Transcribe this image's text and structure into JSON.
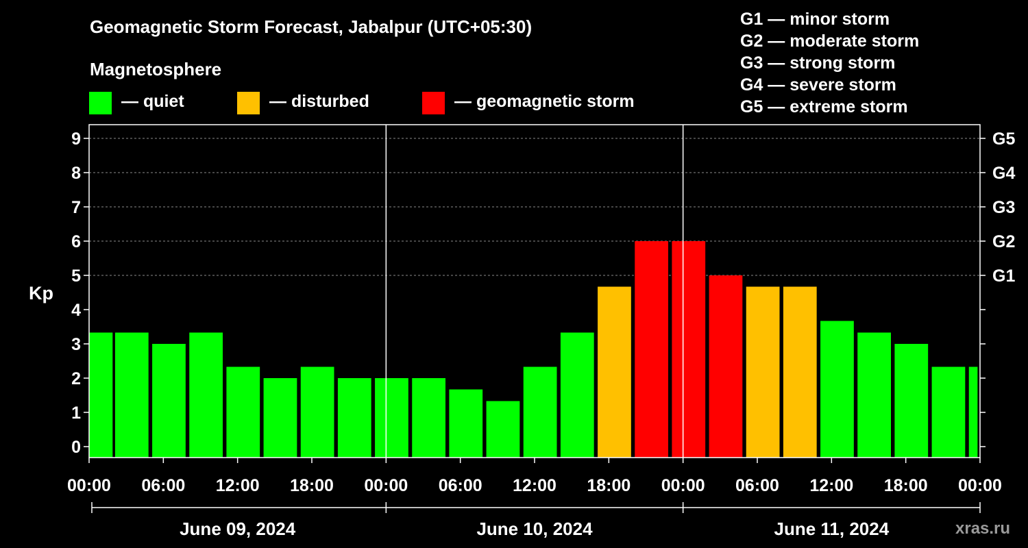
{
  "header": {
    "title": "Geomagnetic Storm Forecast, Jabalpur (UTC+05:30)",
    "subtitle": "Magnetosphere",
    "watermark": "xras.ru"
  },
  "legend": {
    "items": [
      {
        "label": "— quiet",
        "color": "#00ff00"
      },
      {
        "label": "— disturbed",
        "color": "#ffc000"
      },
      {
        "label": "— geomagnetic storm",
        "color": "#ff0000"
      }
    ],
    "storm_levels": [
      "G1 — minor storm",
      "G2 — moderate storm",
      "G3 — strong storm",
      "G4 — severe storm",
      "G5 — extreme storm"
    ]
  },
  "colors": {
    "quiet": "#00ff00",
    "disturbed": "#ffc000",
    "storm": "#ff0000"
  },
  "chart_data": {
    "type": "bar",
    "title": "Geomagnetic Storm Forecast, Jabalpur (UTC+05:30)",
    "ylabel": "Kp",
    "ylim": [
      0,
      9
    ],
    "yticks": [
      "0",
      "1",
      "2",
      "3",
      "4",
      "5",
      "6",
      "7",
      "8",
      "9"
    ],
    "right_axis": [
      {
        "kp": 5,
        "label": "G1"
      },
      {
        "kp": 6,
        "label": "G2"
      },
      {
        "kp": 7,
        "label": "G3"
      },
      {
        "kp": 8,
        "label": "G4"
      },
      {
        "kp": 9,
        "label": "G5"
      }
    ],
    "x_range_hours": [
      0,
      72
    ],
    "xticks": [
      "00:00",
      "06:00",
      "12:00",
      "18:00",
      "00:00",
      "06:00",
      "12:00",
      "18:00",
      "00:00",
      "06:00",
      "12:00",
      "18:00",
      "00:00"
    ],
    "xtick_hours": [
      0,
      6,
      12,
      18,
      24,
      30,
      36,
      42,
      48,
      54,
      60,
      66,
      72
    ],
    "days": [
      "June 09, 2024",
      "June 10, 2024",
      "June 11, 2024"
    ],
    "day_boundaries_hours": [
      24,
      48
    ],
    "bars": [
      {
        "start": 0,
        "end": 1.9,
        "kp": 3.33,
        "level": "quiet"
      },
      {
        "start": 2.1,
        "end": 4.8,
        "kp": 3.33,
        "level": "quiet"
      },
      {
        "start": 5.1,
        "end": 7.8,
        "kp": 3.0,
        "level": "quiet"
      },
      {
        "start": 8.1,
        "end": 10.8,
        "kp": 3.33,
        "level": "quiet"
      },
      {
        "start": 11.1,
        "end": 13.8,
        "kp": 2.33,
        "level": "quiet"
      },
      {
        "start": 14.1,
        "end": 16.8,
        "kp": 2.0,
        "level": "quiet"
      },
      {
        "start": 17.1,
        "end": 19.8,
        "kp": 2.33,
        "level": "quiet"
      },
      {
        "start": 20.1,
        "end": 22.8,
        "kp": 2.0,
        "level": "quiet"
      },
      {
        "start": 23.1,
        "end": 25.8,
        "kp": 2.0,
        "level": "quiet"
      },
      {
        "start": 26.1,
        "end": 28.8,
        "kp": 2.0,
        "level": "quiet"
      },
      {
        "start": 29.1,
        "end": 31.8,
        "kp": 1.67,
        "level": "quiet"
      },
      {
        "start": 32.1,
        "end": 34.8,
        "kp": 1.33,
        "level": "quiet"
      },
      {
        "start": 35.1,
        "end": 37.8,
        "kp": 2.33,
        "level": "quiet"
      },
      {
        "start": 38.1,
        "end": 40.8,
        "kp": 3.33,
        "level": "quiet"
      },
      {
        "start": 41.1,
        "end": 43.8,
        "kp": 4.67,
        "level": "disturbed"
      },
      {
        "start": 44.1,
        "end": 46.8,
        "kp": 6.0,
        "level": "storm"
      },
      {
        "start": 47.1,
        "end": 49.8,
        "kp": 6.0,
        "level": "storm"
      },
      {
        "start": 50.1,
        "end": 52.8,
        "kp": 5.0,
        "level": "storm"
      },
      {
        "start": 53.1,
        "end": 55.8,
        "kp": 4.67,
        "level": "disturbed"
      },
      {
        "start": 56.1,
        "end": 58.8,
        "kp": 4.67,
        "level": "disturbed"
      },
      {
        "start": 59.1,
        "end": 61.8,
        "kp": 3.67,
        "level": "quiet"
      },
      {
        "start": 62.1,
        "end": 64.8,
        "kp": 3.33,
        "level": "quiet"
      },
      {
        "start": 65.1,
        "end": 67.8,
        "kp": 3.0,
        "level": "quiet"
      },
      {
        "start": 68.1,
        "end": 70.8,
        "kp": 2.33,
        "level": "quiet"
      },
      {
        "start": 71.1,
        "end": 71.8,
        "kp": 2.33,
        "level": "quiet"
      }
    ]
  }
}
